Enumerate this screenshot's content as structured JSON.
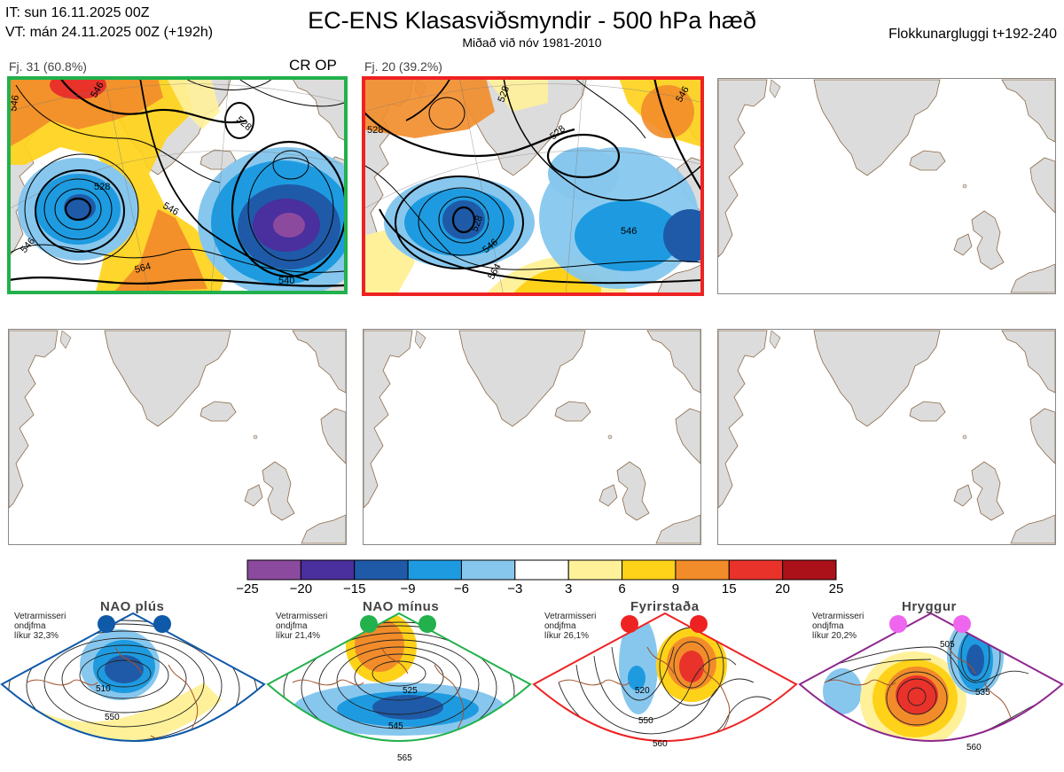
{
  "header": {
    "init_line": "IT: sun 16.11.2025 00Z",
    "valid_line": "VT: mán 24.11.2025 00Z  (+192h)",
    "title": "EC-ENS Klasasviðsmyndir - 500 hPa hæð",
    "subtitle": "Miðað við nóv 1981-2010",
    "window": "Flokkunargluggi t+192-240"
  },
  "panels": [
    {
      "label": "Fj. 31 (60.8%)",
      "tag": "CR OP",
      "border": "#22b14c",
      "contours": [
        "546",
        "546",
        "528",
        "528",
        "546",
        "564",
        "540",
        "546"
      ]
    },
    {
      "label": "Fj. 20 (39.2%)",
      "tag": "",
      "border": "#ee2222",
      "contours": [
        "528",
        "528",
        "528",
        "528",
        "546",
        "564",
        "546",
        "546"
      ]
    }
  ],
  "colorbar": {
    "ticks": [
      "−25",
      "−20",
      "−15",
      "−9",
      "−6",
      "−3",
      "3",
      "6",
      "9",
      "15",
      "20",
      "25"
    ],
    "colors": [
      "#8c4a9e",
      "#4a2f9e",
      "#1f5aa8",
      "#1e9be0",
      "#87c7ee",
      "#ffffff",
      "#fff19a",
      "#ffd21a",
      "#f28c2a",
      "#e8322a",
      "#aa1118"
    ]
  },
  "regimes": [
    {
      "name": "NAO plús",
      "note": [
        "Vetrarmisseri",
        "ondjfma",
        "líkur 32,3%"
      ],
      "color": "#0e59a8",
      "labels": [
        "510",
        "550"
      ]
    },
    {
      "name": "NAO mínus",
      "note": [
        "Vetrarmisseri",
        "ondjfma",
        "líkur 21,4%"
      ],
      "color": "#22b14c",
      "labels": [
        "525",
        "545",
        "565"
      ]
    },
    {
      "name": "Fyrirstaða",
      "note": [
        "Vetrarmisseri",
        "ondjfma",
        "líkur 26,1%"
      ],
      "color": "#ee2222",
      "labels": [
        "520",
        "550",
        "560"
      ]
    },
    {
      "name": "Hryggur",
      "note": [
        "Vetrarmisseri",
        "ondjfma",
        "líkur 20,2%"
      ],
      "color": "#ee66ee",
      "labels": [
        "505",
        "535",
        "560"
      ]
    }
  ]
}
